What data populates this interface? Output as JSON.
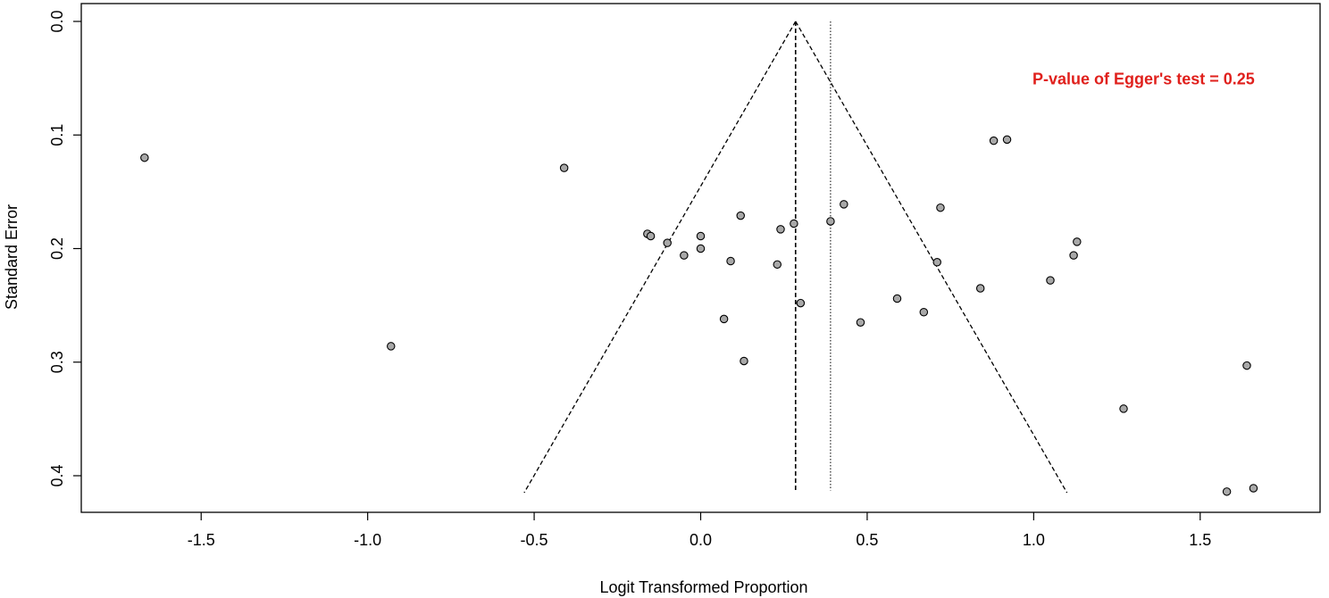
{
  "chart_data": {
    "type": "scatter",
    "title": "",
    "xlabel": "Logit Transformed Proportion",
    "ylabel": "Standard Error",
    "xlim": [
      -1.86,
      1.86
    ],
    "ylim": [
      0.0,
      0.43
    ],
    "y_reversed": true,
    "x_ticks": [
      -1.5,
      -1.0,
      -0.5,
      0.0,
      0.5,
      1.0,
      1.5
    ],
    "x_tick_labels": [
      "-1.5",
      "-1.0",
      "-0.5",
      "0.0",
      "0.5",
      "1.0",
      "1.5"
    ],
    "y_ticks": [
      0.0,
      0.1,
      0.2,
      0.3,
      0.4
    ],
    "y_tick_labels": [
      "0.0",
      "0.1",
      "0.2",
      "0.3",
      "0.4"
    ],
    "grid": false,
    "legend": "none",
    "point_color": "#a8a8a8",
    "annotation": {
      "text": "P-value of Egger's test = 0.25",
      "color": "#e0201c",
      "x": 1.33,
      "y": 0.05
    },
    "funnel": {
      "apex": [
        0.285,
        0.0
      ],
      "left_base": [
        -0.53,
        0.415
      ],
      "right_base": [
        1.1,
        0.415
      ],
      "style": "dashed"
    },
    "vertical_lines": [
      {
        "x": 0.285,
        "y_range": [
          0.0,
          0.413
        ],
        "style": "dashed"
      },
      {
        "x": 0.39,
        "y_range": [
          0.0,
          0.413
        ],
        "style": "dotted"
      }
    ],
    "points": [
      {
        "x": -1.67,
        "y": 0.12
      },
      {
        "x": -0.41,
        "y": 0.129
      },
      {
        "x": -0.93,
        "y": 0.286
      },
      {
        "x": -0.16,
        "y": 0.187
      },
      {
        "x": -0.15,
        "y": 0.189
      },
      {
        "x": -0.1,
        "y": 0.195
      },
      {
        "x": -0.05,
        "y": 0.206
      },
      {
        "x": 0.0,
        "y": 0.189
      },
      {
        "x": 0.0,
        "y": 0.2
      },
      {
        "x": 0.07,
        "y": 0.262
      },
      {
        "x": 0.09,
        "y": 0.211
      },
      {
        "x": 0.12,
        "y": 0.171
      },
      {
        "x": 0.13,
        "y": 0.299
      },
      {
        "x": 0.23,
        "y": 0.214
      },
      {
        "x": 0.24,
        "y": 0.183
      },
      {
        "x": 0.28,
        "y": 0.178
      },
      {
        "x": 0.3,
        "y": 0.248
      },
      {
        "x": 0.39,
        "y": 0.176
      },
      {
        "x": 0.43,
        "y": 0.161
      },
      {
        "x": 0.48,
        "y": 0.265
      },
      {
        "x": 0.59,
        "y": 0.244
      },
      {
        "x": 0.67,
        "y": 0.256
      },
      {
        "x": 0.71,
        "y": 0.212
      },
      {
        "x": 0.72,
        "y": 0.164
      },
      {
        "x": 0.84,
        "y": 0.235
      },
      {
        "x": 0.88,
        "y": 0.105
      },
      {
        "x": 0.92,
        "y": 0.104
      },
      {
        "x": 1.05,
        "y": 0.228
      },
      {
        "x": 1.12,
        "y": 0.206
      },
      {
        "x": 1.13,
        "y": 0.194
      },
      {
        "x": 1.27,
        "y": 0.341
      },
      {
        "x": 1.58,
        "y": 0.414
      },
      {
        "x": 1.64,
        "y": 0.303
      },
      {
        "x": 1.66,
        "y": 0.411
      }
    ]
  }
}
